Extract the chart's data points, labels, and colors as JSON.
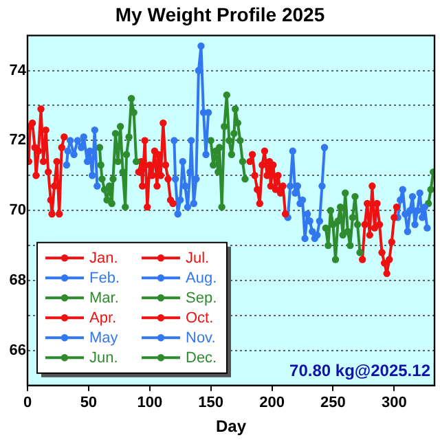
{
  "chart_data": {
    "type": "line",
    "title": "My Weight Profile 2025",
    "xlabel": "Day",
    "xlim": [
      0,
      333
    ],
    "xticks": [
      0,
      50,
      100,
      150,
      200,
      250,
      300
    ],
    "ylim": [
      65,
      75
    ],
    "yticks": [
      {
        "value": 66,
        "label": "66"
      },
      {
        "value": 67,
        "label": null
      },
      {
        "value": 68,
        "label": "68"
      },
      {
        "value": 69,
        "label": null
      },
      {
        "value": 70,
        "label": "70"
      },
      {
        "value": 71,
        "label": null
      },
      {
        "value": 72,
        "label": "72"
      },
      {
        "value": 73,
        "label": null
      },
      {
        "value": 74,
        "label": "74"
      }
    ],
    "grid": "y",
    "legend": "bottom left",
    "marker": "circle",
    "line_style": "solid",
    "annotations": [
      "70.80 kg@2025.12"
    ],
    "series": [
      {
        "name": "Jan.",
        "color": "#ee1111",
        "x": [
          1,
          2,
          4,
          6,
          7,
          9,
          11,
          13,
          15,
          17,
          19,
          20,
          22,
          24,
          26,
          28,
          30
        ],
        "values": [
          71.4,
          72.4,
          72.5,
          71.8,
          71.0,
          71.7,
          72.9,
          71.4,
          72.3,
          71.1,
          70.3,
          69.9,
          70.7,
          71.4,
          69.9,
          71.8,
          72.1
        ]
      },
      {
        "name": "Feb.",
        "color": "#3377ee",
        "x": [
          32,
          33,
          35,
          38,
          41,
          44,
          46,
          49,
          51,
          53,
          55,
          57
        ],
        "values": [
          71.3,
          71.7,
          72.0,
          71.6,
          72.0,
          71.8,
          72.1,
          71.4,
          71.7,
          71.0,
          72.3,
          70.7
        ]
      },
      {
        "name": "Mar.",
        "color": "#2e8b2e",
        "x": [
          59,
          60,
          61,
          63,
          65,
          67,
          69,
          70,
          72,
          74,
          76,
          78,
          80,
          81,
          83,
          85,
          87,
          89
        ],
        "values": [
          71.8,
          71.3,
          70.9,
          70.6,
          70.3,
          70.7,
          70.2,
          70.9,
          72.2,
          71.4,
          72.4,
          71.1,
          70.1,
          71.6,
          72.1,
          73.2,
          72.8,
          71.4
        ]
      },
      {
        "name": "Apr.",
        "color": "#ee1111",
        "x": [
          91,
          93,
          94,
          96,
          98,
          100,
          102,
          104,
          106,
          107,
          109,
          111,
          113,
          115,
          117,
          119
        ],
        "values": [
          71.1,
          71.4,
          70.7,
          72.0,
          70.1,
          71.3,
          71.0,
          71.7,
          70.7,
          71.6,
          71.0,
          72.5,
          71.3,
          70.9,
          70.3,
          70.2
        ]
      },
      {
        "name": "May",
        "color": "#3377ee",
        "x": [
          120,
          121,
          123,
          125,
          127,
          129,
          131,
          133,
          134,
          136,
          138,
          140,
          142,
          144,
          146,
          148
        ],
        "values": [
          72.0,
          70.9,
          69.9,
          70.3,
          71.4,
          70.7,
          70.1,
          71.1,
          72.0,
          70.2,
          70.9,
          74.0,
          74.7,
          72.8,
          71.6,
          72.8
        ]
      },
      {
        "name": "Jun.",
        "color": "#2e8b2e",
        "x": [
          150,
          152,
          154,
          156,
          157,
          159,
          161,
          163,
          165,
          167,
          169,
          170,
          172,
          174,
          176,
          178
        ],
        "values": [
          72.0,
          71.3,
          71.7,
          71.1,
          71.8,
          70.1,
          72.4,
          73.3,
          72.0,
          71.6,
          72.2,
          72.9,
          72.5,
          72.0,
          71.4,
          70.9
        ]
      },
      {
        "name": "Jul.",
        "color": "#ee1111",
        "x": [
          182,
          184,
          186,
          188,
          190,
          192,
          194,
          196,
          198,
          199,
          201,
          203,
          205,
          207,
          209,
          211
        ],
        "values": [
          71.4,
          71.6,
          71.0,
          70.6,
          70.2,
          71.3,
          71.7,
          71.0,
          71.4,
          70.7,
          71.3,
          70.6,
          71.0,
          70.5,
          70.7,
          69.9
        ]
      },
      {
        "name": "Aug.",
        "color": "#3377ee",
        "x": [
          213,
          215,
          217,
          219,
          221,
          223,
          225,
          227,
          229,
          231,
          233,
          235,
          237,
          239,
          241,
          243
        ],
        "values": [
          69.8,
          70.7,
          71.7,
          70.5,
          70.7,
          70.2,
          70.3,
          69.2,
          69.9,
          69.7,
          69.4,
          69.2,
          69.3,
          69.7,
          70.7,
          71.8
        ]
      },
      {
        "name": "Sep.",
        "color": "#2e8b2e",
        "x": [
          244,
          246,
          248,
          250,
          252,
          254,
          256,
          258,
          260,
          262,
          264,
          266,
          268,
          270,
          272
        ],
        "values": [
          69.5,
          69.0,
          70.0,
          69.6,
          68.6,
          69.7,
          70.1,
          69.3,
          70.5,
          69.4,
          69.0,
          69.8,
          70.4,
          69.6,
          68.8
        ]
      },
      {
        "name": "Oct.",
        "color": "#ee1111",
        "x": [
          274,
          276,
          278,
          280,
          282,
          284,
          286,
          288,
          290,
          292,
          294,
          296,
          298,
          300,
          302
        ],
        "values": [
          68.6,
          69.6,
          70.2,
          69.3,
          70.7,
          69.5,
          70.2,
          69.6,
          68.8,
          68.5,
          68.2,
          68.6,
          69.1,
          69.8,
          70.1
        ]
      },
      {
        "name": "Nov.",
        "color": "#3377ee",
        "x": [
          303,
          305,
          307,
          309,
          311,
          313,
          315,
          317,
          319,
          321,
          323,
          325,
          327
        ],
        "values": [
          69.8,
          70.3,
          70.6,
          69.9,
          69.4,
          70.0,
          70.4,
          69.6,
          70.0,
          70.5,
          69.8,
          70.1,
          69.5
        ]
      },
      {
        "name": "Dec.",
        "color": "#2e8b2e",
        "x": [
          328,
          330,
          332
        ],
        "values": [
          70.2,
          70.6,
          71.1
        ]
      }
    ]
  }
}
